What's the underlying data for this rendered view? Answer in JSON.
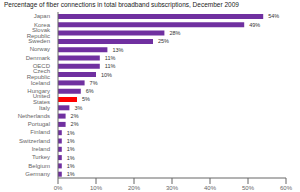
{
  "chart_data": {
    "type": "bar",
    "orientation": "horizontal",
    "title": "Percentage of fiber connections in total broadband subscriptions, December 2009",
    "categories": [
      "Germany",
      "Belgium",
      "Turkey",
      "Ireland",
      "Switzerland",
      "Finland",
      "Portugal",
      "Netherlands",
      "Italy",
      "United States",
      "Hungary",
      "Iceland",
      "Czech Republic",
      "OECD",
      "Denmark",
      "Norway",
      "Sweden",
      "Slovak Republic",
      "Korea",
      "Japan"
    ],
    "values": [
      1,
      1,
      1,
      1,
      1,
      1,
      2,
      2,
      3,
      5,
      6,
      7,
      10,
      11,
      11,
      13,
      25,
      28,
      49,
      54
    ],
    "value_labels": [
      "1%",
      "1%",
      "1%",
      "1%",
      "1%",
      "1%",
      "2%",
      "2%",
      "3%",
      "5%",
      "6%",
      "7%",
      "10%",
      "11%",
      "11%",
      "13%",
      "25%",
      "28%",
      "49%",
      "54%"
    ],
    "data_labels": true,
    "colors": [
      "#7030a0",
      "#7030a0",
      "#7030a0",
      "#7030a0",
      "#7030a0",
      "#7030a0",
      "#7030a0",
      "#7030a0",
      "#7030a0",
      "#ff0000",
      "#7030a0",
      "#7030a0",
      "#7030a0",
      "#7030a0",
      "#7030a0",
      "#7030a0",
      "#7030a0",
      "#7030a0",
      "#7030a0",
      "#7030a0"
    ],
    "xlim": [
      0,
      60
    ],
    "xticks": [
      {
        "value": 0,
        "label": "0%"
      },
      {
        "value": 10,
        "label": "10%"
      },
      {
        "value": 20,
        "label": "20%"
      },
      {
        "value": 30,
        "label": "30%"
      },
      {
        "value": 40,
        "label": "40%"
      },
      {
        "value": 50,
        "label": "50%"
      },
      {
        "value": 60,
        "label": "60%"
      }
    ],
    "grid": false
  }
}
